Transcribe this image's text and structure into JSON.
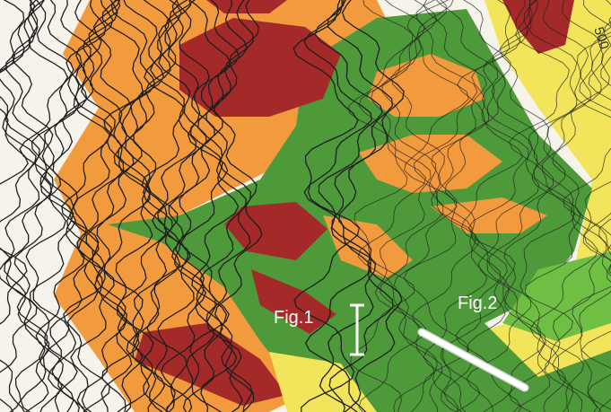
{
  "annotations": {
    "fig1": "Fig.1",
    "fig2": "Fig.2",
    "contour_label": "500"
  }
}
